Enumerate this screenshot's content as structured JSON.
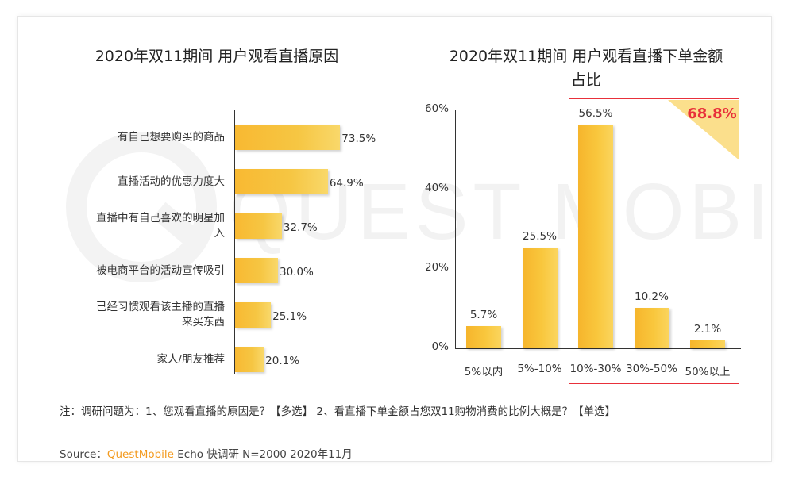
{
  "chart_data": [
    {
      "type": "bar",
      "orientation": "horizontal",
      "title": "2020年双11期间 用户观看直播原因",
      "categories": [
        "有自己想要购买的商品",
        "直播活动的优惠力度大",
        "直播中有自己喜欢的明星加入",
        "被电商平台的活动宣传吸引",
        "已经习惯观看该主播的直播来买东西",
        "家人/朋友推荐"
      ],
      "values": [
        73.5,
        64.9,
        32.7,
        30.0,
        25.1,
        20.1
      ],
      "value_labels": [
        "73.5%",
        "64.9%",
        "32.7%",
        "30.0%",
        "25.1%",
        "20.1%"
      ],
      "xlim": [
        0,
        100
      ]
    },
    {
      "type": "bar",
      "title": "2020年双11期间 用户观看直播下单金额占比",
      "categories": [
        "5%以内",
        "5%-10%",
        "10%-30%",
        "30%-50%",
        "50%以上"
      ],
      "values": [
        5.7,
        25.5,
        56.5,
        10.2,
        2.1
      ],
      "value_labels": [
        "5.7%",
        "25.5%",
        "56.5%",
        "10.2%",
        "2.1%"
      ],
      "ylim": [
        0,
        60
      ],
      "yticks": [
        "0%",
        "20%",
        "40%",
        "60%"
      ],
      "highlight": {
        "categories": [
          "10%-30%",
          "30%-50%",
          "50%以上"
        ],
        "value": "68.8%",
        "color": "#e8303a"
      }
    }
  ],
  "note": "注：调研问题为：1、您观看直播的原因是？【多选】 2、看直播下单金额占您双11购物消费的比例大概是？【单选】",
  "source": {
    "prefix": "Source：",
    "brand": "QuestMobile",
    "rest": " Echo 快调研 N=2000 2020年11月"
  },
  "watermark": "QUEST MOBILE",
  "colors": {
    "bar": "#f8bd35",
    "highlight": "#e8303a",
    "brand": "#f39a1e"
  }
}
